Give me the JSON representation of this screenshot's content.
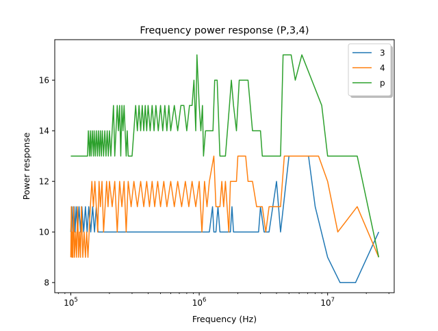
{
  "chart_data": {
    "type": "line",
    "title": "Frequency power response (P,3,4)",
    "xlabel": "Frequency (Hz)",
    "ylabel": "Power response",
    "xscale": "log",
    "xlim": [
      75000,
      33000000
    ],
    "ylim": [
      7.6,
      17.6
    ],
    "x_ticks": [
      {
        "value": 100000,
        "base": "10",
        "exp": "5"
      },
      {
        "value": 1000000,
        "base": "10",
        "exp": "6"
      },
      {
        "value": 10000000,
        "base": "10",
        "exp": "7"
      }
    ],
    "y_ticks": [
      {
        "value": 8,
        "label": "8"
      },
      {
        "value": 10,
        "label": "10"
      },
      {
        "value": 12,
        "label": "12"
      },
      {
        "value": 14,
        "label": "14"
      },
      {
        "value": 16,
        "label": "16"
      }
    ],
    "grid": false,
    "legend_position": "top-right",
    "series": [
      {
        "name": "3",
        "color": "#1f77b4",
        "points": [
          [
            100000,
            10
          ],
          [
            102000,
            11
          ],
          [
            104000,
            10
          ],
          [
            106000,
            11
          ],
          [
            108000,
            10
          ],
          [
            110000,
            11
          ],
          [
            113000,
            10
          ],
          [
            116000,
            11
          ],
          [
            119000,
            10
          ],
          [
            122000,
            11
          ],
          [
            126000,
            10
          ],
          [
            130000,
            11
          ],
          [
            134000,
            10
          ],
          [
            138000,
            11
          ],
          [
            143000,
            10
          ],
          [
            148000,
            11
          ],
          [
            153000,
            10
          ],
          [
            158000,
            11
          ],
          [
            163000,
            10
          ],
          [
            170000,
            10
          ],
          [
            1200000,
            10
          ],
          [
            1270000,
            11
          ],
          [
            1300000,
            10
          ],
          [
            1350000,
            10
          ],
          [
            1400000,
            11
          ],
          [
            1450000,
            10
          ],
          [
            1750000,
            10
          ],
          [
            1800000,
            11
          ],
          [
            1850000,
            10
          ],
          [
            2900000,
            10
          ],
          [
            3000000,
            11
          ],
          [
            3200000,
            10
          ],
          [
            3500000,
            10
          ],
          [
            4000000,
            12
          ],
          [
            4300000,
            10
          ],
          [
            5000000,
            13
          ],
          [
            7100000,
            13
          ],
          [
            8000000,
            11
          ],
          [
            10000000,
            9
          ],
          [
            12500000,
            8
          ],
          [
            16500000,
            8
          ],
          [
            25000000,
            10
          ]
        ]
      },
      {
        "name": "4",
        "color": "#ff7f0e",
        "points": [
          [
            100000,
            9
          ],
          [
            101000,
            11
          ],
          [
            102000,
            9
          ],
          [
            103000,
            10
          ],
          [
            104000,
            9
          ],
          [
            105000,
            11
          ],
          [
            107000,
            9
          ],
          [
            109000,
            10
          ],
          [
            111000,
            9
          ],
          [
            113000,
            11
          ],
          [
            115000,
            9
          ],
          [
            117000,
            10
          ],
          [
            119000,
            9
          ],
          [
            121000,
            11
          ],
          [
            124000,
            9
          ],
          [
            127000,
            10
          ],
          [
            130000,
            9
          ],
          [
            133000,
            10
          ],
          [
            136000,
            9
          ],
          [
            139000,
            10
          ],
          [
            142000,
            11
          ],
          [
            146000,
            12
          ],
          [
            150000,
            11
          ],
          [
            154000,
            12
          ],
          [
            158000,
            11
          ],
          [
            162000,
            10
          ],
          [
            166000,
            12
          ],
          [
            170000,
            11
          ],
          [
            175000,
            12
          ],
          [
            180000,
            10
          ],
          [
            185000,
            11
          ],
          [
            190000,
            12
          ],
          [
            195000,
            11
          ],
          [
            200000,
            12
          ],
          [
            210000,
            11
          ],
          [
            220000,
            12
          ],
          [
            230000,
            10
          ],
          [
            240000,
            12
          ],
          [
            250000,
            11
          ],
          [
            260000,
            12
          ],
          [
            270000,
            10
          ],
          [
            280000,
            12
          ],
          [
            295000,
            11
          ],
          [
            310000,
            12
          ],
          [
            330000,
            11
          ],
          [
            350000,
            12
          ],
          [
            370000,
            11
          ],
          [
            390000,
            12
          ],
          [
            410000,
            11
          ],
          [
            430000,
            12
          ],
          [
            450000,
            11
          ],
          [
            475000,
            12
          ],
          [
            500000,
            11
          ],
          [
            530000,
            12
          ],
          [
            560000,
            11
          ],
          [
            600000,
            12
          ],
          [
            640000,
            11
          ],
          [
            680000,
            12
          ],
          [
            730000,
            11
          ],
          [
            780000,
            12
          ],
          [
            830000,
            11
          ],
          [
            880000,
            12
          ],
          [
            940000,
            11
          ],
          [
            1000000,
            12
          ],
          [
            1050000,
            10
          ],
          [
            1100000,
            12
          ],
          [
            1150000,
            11
          ],
          [
            1200000,
            12
          ],
          [
            1300000,
            13
          ],
          [
            1350000,
            11
          ],
          [
            1450000,
            11
          ],
          [
            1500000,
            12
          ],
          [
            1550000,
            11
          ],
          [
            1600000,
            12
          ],
          [
            1700000,
            10
          ],
          [
            1750000,
            12
          ],
          [
            1850000,
            12
          ],
          [
            1950000,
            12
          ],
          [
            2000000,
            13
          ],
          [
            2300000,
            13
          ],
          [
            2400000,
            12
          ],
          [
            2600000,
            12
          ],
          [
            2800000,
            11
          ],
          [
            3100000,
            11
          ],
          [
            3300000,
            10
          ],
          [
            3500000,
            11
          ],
          [
            3700000,
            11
          ],
          [
            3900000,
            11
          ],
          [
            4300000,
            11
          ],
          [
            4600000,
            13
          ],
          [
            8500000,
            13
          ],
          [
            10000000,
            12
          ],
          [
            12000000,
            10
          ],
          [
            17000000,
            11
          ],
          [
            25000000,
            9
          ]
        ]
      },
      {
        "name": "p",
        "color": "#2ca02c",
        "points": [
          [
            100000,
            13
          ],
          [
            135000,
            13
          ],
          [
            137000,
            14
          ],
          [
            140000,
            13
          ],
          [
            142000,
            14
          ],
          [
            144000,
            13
          ],
          [
            147000,
            14
          ],
          [
            150000,
            13
          ],
          [
            152000,
            14
          ],
          [
            155000,
            13
          ],
          [
            158000,
            14
          ],
          [
            161000,
            13
          ],
          [
            164000,
            14
          ],
          [
            167000,
            13
          ],
          [
            170000,
            14
          ],
          [
            173000,
            13
          ],
          [
            176000,
            14
          ],
          [
            180000,
            13
          ],
          [
            184000,
            14
          ],
          [
            188000,
            13
          ],
          [
            192000,
            14
          ],
          [
            196000,
            13
          ],
          [
            200000,
            14
          ],
          [
            205000,
            13
          ],
          [
            210000,
            14
          ],
          [
            215000,
            15
          ],
          [
            220000,
            13
          ],
          [
            225000,
            14
          ],
          [
            230000,
            15
          ],
          [
            235000,
            14
          ],
          [
            240000,
            15
          ],
          [
            245000,
            13
          ],
          [
            250000,
            15
          ],
          [
            255000,
            14
          ],
          [
            260000,
            15
          ],
          [
            265000,
            14
          ],
          [
            270000,
            13
          ],
          [
            275000,
            14
          ],
          [
            280000,
            13
          ],
          [
            300000,
            13
          ],
          [
            310000,
            14
          ],
          [
            320000,
            15
          ],
          [
            330000,
            14
          ],
          [
            340000,
            15
          ],
          [
            350000,
            14
          ],
          [
            360000,
            15
          ],
          [
            370000,
            14
          ],
          [
            380000,
            15
          ],
          [
            390000,
            14
          ],
          [
            400000,
            15
          ],
          [
            415000,
            14
          ],
          [
            430000,
            15
          ],
          [
            445000,
            14
          ],
          [
            460000,
            15
          ],
          [
            480000,
            14
          ],
          [
            500000,
            15
          ],
          [
            520000,
            14
          ],
          [
            540000,
            15
          ],
          [
            560000,
            14
          ],
          [
            580000,
            15
          ],
          [
            600000,
            14
          ],
          [
            640000,
            15
          ],
          [
            680000,
            14
          ],
          [
            720000,
            15
          ],
          [
            760000,
            15
          ],
          [
            800000,
            14
          ],
          [
            840000,
            15
          ],
          [
            880000,
            15
          ],
          [
            910000,
            16
          ],
          [
            940000,
            14
          ],
          [
            960000,
            17
          ],
          [
            980000,
            16
          ],
          [
            1000000,
            15
          ],
          [
            1030000,
            14
          ],
          [
            1060000,
            15
          ],
          [
            1080000,
            13
          ],
          [
            1120000,
            14
          ],
          [
            1200000,
            14
          ],
          [
            1280000,
            14
          ],
          [
            1320000,
            16
          ],
          [
            1380000,
            16
          ],
          [
            1450000,
            13
          ],
          [
            1600000,
            13
          ],
          [
            1720000,
            15
          ],
          [
            1780000,
            16
          ],
          [
            1850000,
            15
          ],
          [
            1950000,
            14
          ],
          [
            2050000,
            16
          ],
          [
            2400000,
            16
          ],
          [
            2600000,
            14
          ],
          [
            3000000,
            14
          ],
          [
            3100000,
            13
          ],
          [
            4300000,
            13
          ],
          [
            4500000,
            17
          ],
          [
            5200000,
            17
          ],
          [
            5600000,
            16
          ],
          [
            6300000,
            17
          ],
          [
            9000000,
            15
          ],
          [
            10000000,
            13
          ],
          [
            17000000,
            13
          ],
          [
            25000000,
            9
          ]
        ]
      }
    ]
  }
}
